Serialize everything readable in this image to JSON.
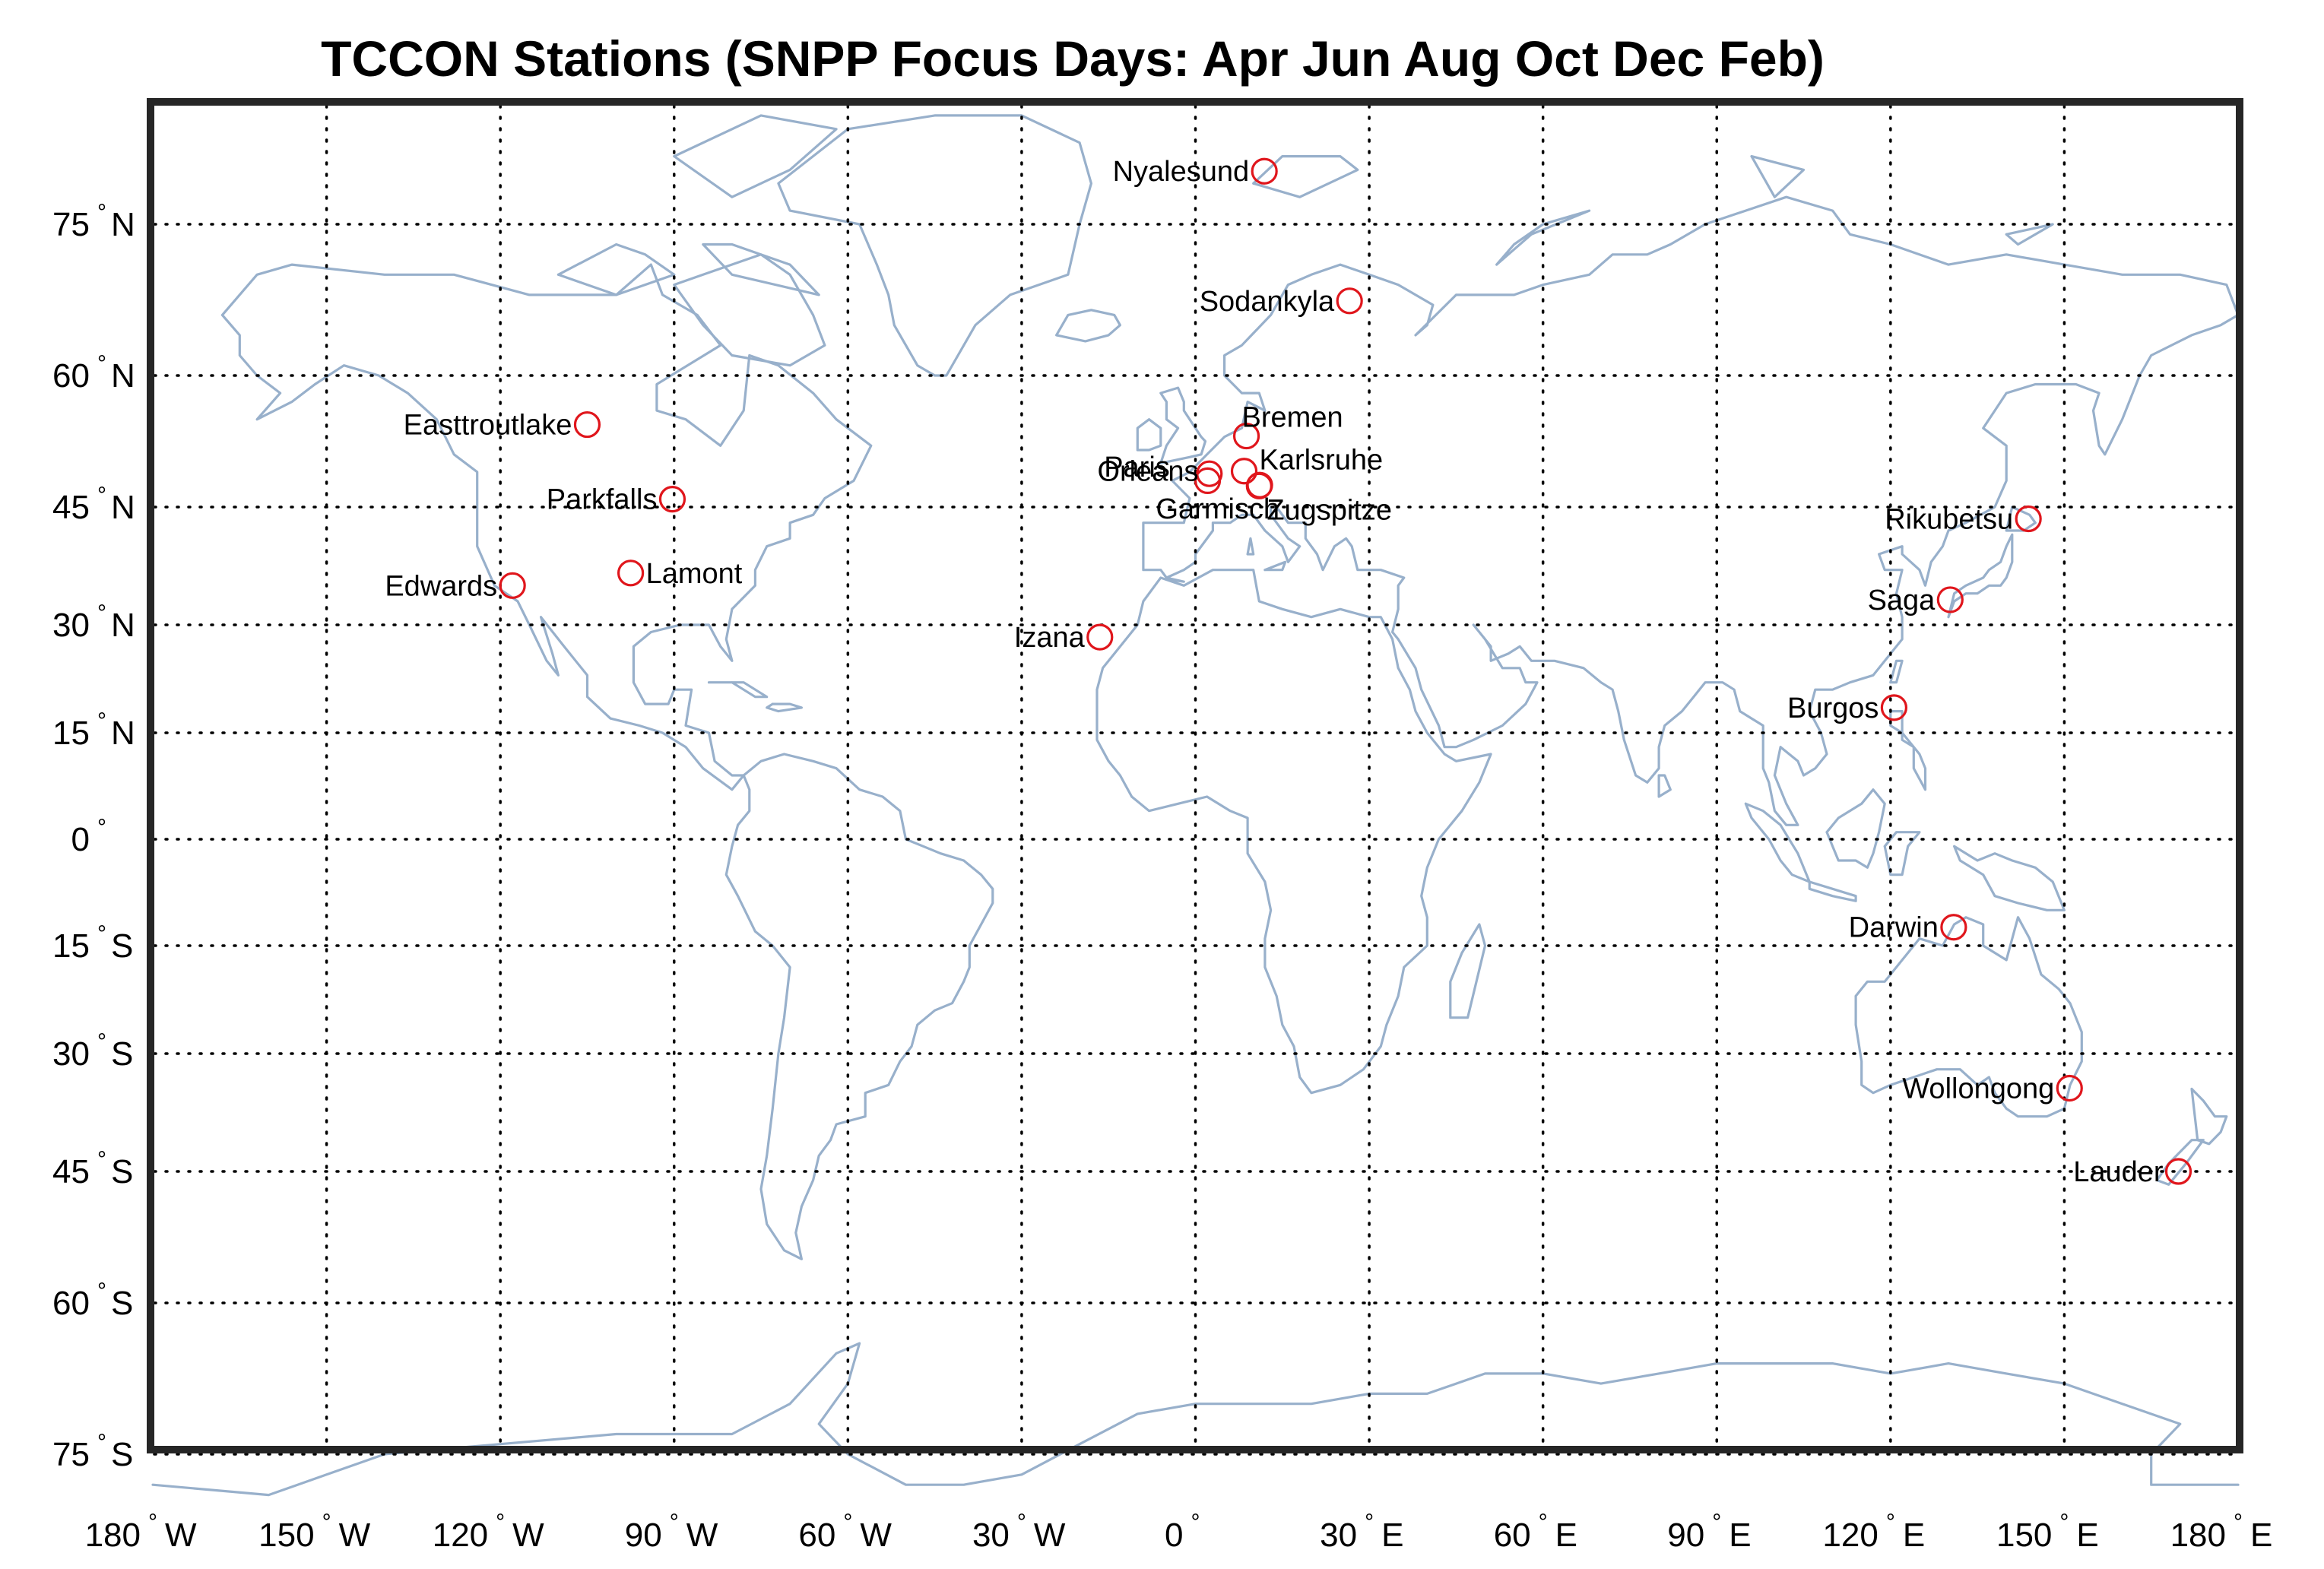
{
  "title": "TCCON Stations (SNPP Focus Days: Apr Jun Aug Oct Dec Feb)",
  "colors": {
    "coastline": "#98b0cb",
    "marker": "#e0161c",
    "frame": "#262626",
    "grid": "#000000"
  },
  "degree_symbol": "°",
  "latitude_ticks": [
    {
      "value": 75,
      "num": "75",
      "hemi": "N"
    },
    {
      "value": 60,
      "num": "60",
      "hemi": "N"
    },
    {
      "value": 45,
      "num": "45",
      "hemi": "N"
    },
    {
      "value": 30,
      "num": "30",
      "hemi": "N"
    },
    {
      "value": 15,
      "num": "15",
      "hemi": "N"
    },
    {
      "value": 0,
      "num": "0",
      "hemi": ""
    },
    {
      "value": -15,
      "num": "15",
      "hemi": "S"
    },
    {
      "value": -30,
      "num": "30",
      "hemi": "S"
    },
    {
      "value": -45,
      "num": "45",
      "hemi": "S"
    },
    {
      "value": -60,
      "num": "60",
      "hemi": "S"
    },
    {
      "value": -75,
      "num": "75",
      "hemi": "S"
    }
  ],
  "longitude_ticks": [
    {
      "value": -180,
      "num": "180",
      "hemi": "W"
    },
    {
      "value": -150,
      "num": "150",
      "hemi": "W"
    },
    {
      "value": -120,
      "num": "120",
      "hemi": "W"
    },
    {
      "value": -90,
      "num": "90",
      "hemi": "W"
    },
    {
      "value": -60,
      "num": "60",
      "hemi": "W"
    },
    {
      "value": -30,
      "num": "30",
      "hemi": "W"
    },
    {
      "value": 0,
      "num": "0",
      "hemi": ""
    },
    {
      "value": 30,
      "num": "30",
      "hemi": "E"
    },
    {
      "value": 60,
      "num": "60",
      "hemi": "E"
    },
    {
      "value": 90,
      "num": "90",
      "hemi": "E"
    },
    {
      "value": 120,
      "num": "120",
      "hemi": "E"
    },
    {
      "value": 150,
      "num": "150",
      "hemi": "E"
    },
    {
      "value": 180,
      "num": "180",
      "hemi": "E"
    }
  ],
  "stations": [
    {
      "name": "Nyalesund",
      "lat": 78.9,
      "lon": 11.9,
      "label_side": "left"
    },
    {
      "name": "Sodankyla",
      "lat": 67.4,
      "lon": 26.6,
      "label_side": "left"
    },
    {
      "name": "Bremen",
      "lat": 53.1,
      "lon": 8.8,
      "label_side": "above-right"
    },
    {
      "name": "Paris",
      "lat": 48.8,
      "lon": 2.4,
      "label_side": "above-left"
    },
    {
      "name": "Orleans",
      "lat": 48.0,
      "lon": 2.1,
      "label_side": "left"
    },
    {
      "name": "Karlsruhe",
      "lat": 49.1,
      "lon": 8.4,
      "label_side": "right"
    },
    {
      "name": "Garmisch",
      "lat": 47.5,
      "lon": 11.1,
      "label_side": "below-left"
    },
    {
      "name": "Zugspitze",
      "lat": 47.4,
      "lon": 11.0,
      "label_side": "below-right"
    },
    {
      "name": "Easttroutlake",
      "lat": 54.4,
      "lon": -105.0,
      "label_side": "left"
    },
    {
      "name": "Parkfalls",
      "lat": 45.9,
      "lon": -90.3,
      "label_side": "left"
    },
    {
      "name": "Lamont",
      "lat": 36.6,
      "lon": -97.5,
      "label_side": "right"
    },
    {
      "name": "Edwards",
      "lat": 35.0,
      "lon": -117.9,
      "label_side": "left"
    },
    {
      "name": "Izana",
      "lat": 28.3,
      "lon": -16.5,
      "label_side": "left"
    },
    {
      "name": "Rikubetsu",
      "lat": 43.5,
      "lon": 143.8,
      "label_side": "left"
    },
    {
      "name": "Saga",
      "lat": 33.2,
      "lon": 130.3,
      "label_side": "left"
    },
    {
      "name": "Burgos",
      "lat": 18.5,
      "lon": 120.6,
      "label_side": "left"
    },
    {
      "name": "Darwin",
      "lat": -12.4,
      "lon": 130.9,
      "label_side": "left"
    },
    {
      "name": "Wollongong",
      "lat": -34.4,
      "lon": 150.9,
      "label_side": "left"
    },
    {
      "name": "Lauder",
      "lat": -45.0,
      "lon": 169.7,
      "label_side": "left"
    }
  ]
}
